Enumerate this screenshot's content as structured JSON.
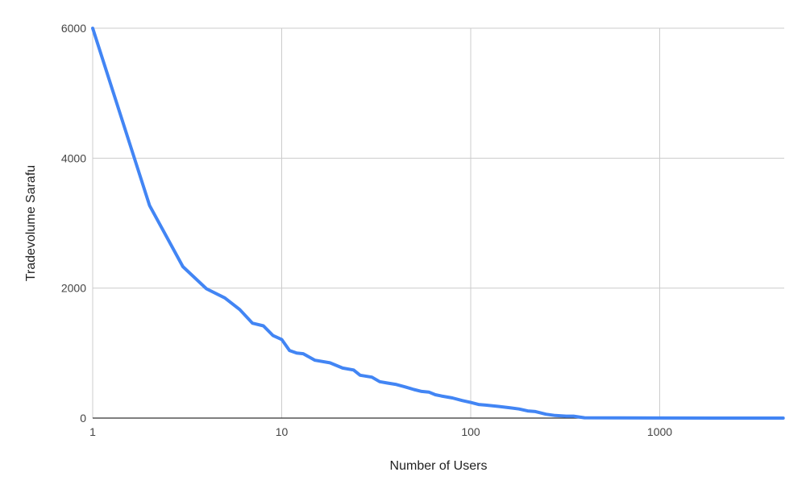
{
  "chart_data": {
    "type": "line",
    "title": "",
    "xlabel": "Number of Users",
    "ylabel": "Tradevolume Sarafu",
    "x_scale": "log",
    "xlim": [
      1,
      4500
    ],
    "ylim": [
      0,
      6000
    ],
    "x_ticks": [
      1,
      10,
      100,
      1000
    ],
    "x_tick_labels": [
      "1",
      "10",
      "100",
      "1000"
    ],
    "y_ticks": [
      0,
      2000,
      4000,
      6000
    ],
    "y_tick_labels": [
      "0",
      "2000",
      "4000",
      "6000"
    ],
    "grid": true,
    "legend": "none",
    "colors": {
      "line": "#4285f4",
      "grid": "#cccccc",
      "baseline": "#333333"
    },
    "series": [
      {
        "x": [
          1,
          2,
          3,
          4,
          5,
          6,
          7,
          8,
          9,
          10,
          11,
          12,
          13,
          15,
          18,
          21,
          24,
          26,
          30,
          33,
          36,
          40,
          45,
          50,
          55,
          60,
          65,
          70,
          80,
          90,
          100,
          110,
          120,
          140,
          160,
          180,
          200,
          220,
          250,
          280,
          320,
          350,
          400,
          600,
          1000,
          2000,
          4500
        ],
        "y": [
          6000,
          3270,
          2330,
          1990,
          1850,
          1670,
          1460,
          1420,
          1270,
          1210,
          1040,
          1000,
          990,
          890,
          850,
          770,
          740,
          660,
          630,
          560,
          540,
          520,
          480,
          440,
          410,
          400,
          360,
          340,
          310,
          270,
          240,
          210,
          200,
          180,
          160,
          140,
          110,
          100,
          60,
          40,
          30,
          30,
          5,
          2,
          1,
          0,
          0
        ]
      }
    ]
  }
}
